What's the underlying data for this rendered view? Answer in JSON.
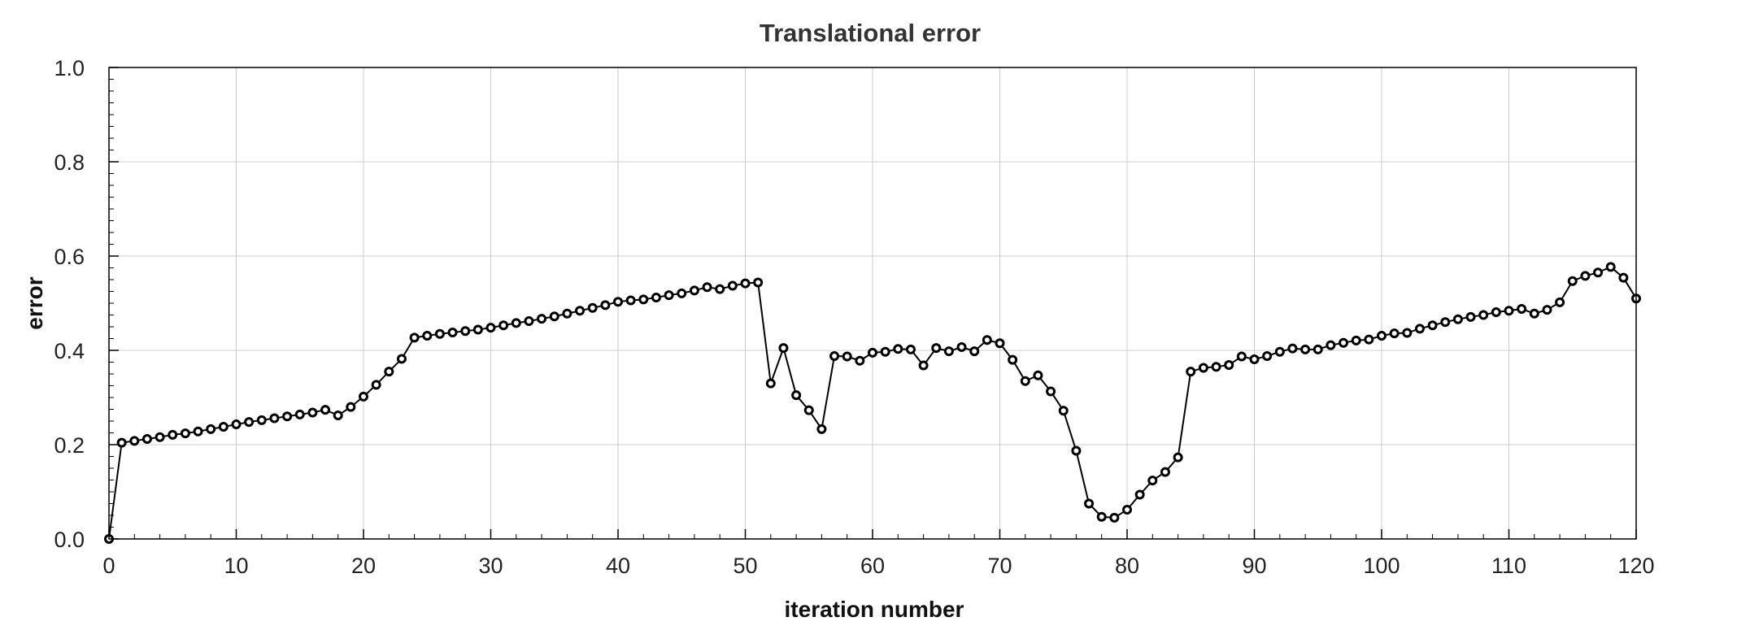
{
  "chart_data": {
    "type": "line",
    "title": "Translational error",
    "xlabel": "iteration number",
    "ylabel": "error",
    "xlim": [
      0,
      120
    ],
    "ylim": [
      0,
      1.0
    ],
    "x_ticks": [
      0,
      10,
      20,
      30,
      40,
      50,
      60,
      70,
      80,
      90,
      100,
      110,
      120
    ],
    "y_ticks": [
      0.0,
      0.2,
      0.4,
      0.6,
      0.8,
      1.0
    ],
    "x_tick_labels": [
      "0",
      "10",
      "20",
      "30",
      "40",
      "50",
      "60",
      "70",
      "80",
      "90",
      "100",
      "110",
      "120"
    ],
    "y_tick_labels": [
      "0.0",
      "0.2",
      "0.4",
      "0.6",
      "0.8",
      "1.0"
    ],
    "grid": true,
    "legend": "none",
    "colors": {
      "line": "#000000",
      "marker_fill": "#ffffff",
      "grid": "#cccccc",
      "axis": "#000000",
      "text": "#222222",
      "title": "#333333"
    },
    "series": [
      {
        "marker": "circle",
        "x": [
          0,
          1,
          2,
          3,
          4,
          5,
          6,
          7,
          8,
          9,
          10,
          11,
          12,
          13,
          14,
          15,
          16,
          17,
          18,
          19,
          20,
          21,
          22,
          23,
          24,
          25,
          26,
          27,
          28,
          29,
          30,
          31,
          32,
          33,
          34,
          35,
          36,
          37,
          38,
          39,
          40,
          41,
          42,
          43,
          44,
          45,
          46,
          47,
          48,
          49,
          50,
          51,
          52,
          53,
          54,
          55,
          56,
          57,
          58,
          59,
          60,
          61,
          62,
          63,
          64,
          65,
          66,
          67,
          68,
          69,
          70,
          71,
          72,
          73,
          74,
          75,
          76,
          77,
          78,
          79,
          80,
          81,
          82,
          83,
          84,
          85,
          86,
          87,
          88,
          89,
          90,
          91,
          92,
          93,
          94,
          95,
          96,
          97,
          98,
          99,
          100,
          101,
          102,
          103,
          104,
          105,
          106,
          107,
          108,
          109,
          110,
          111,
          112,
          113,
          114,
          115,
          116,
          117,
          118,
          119,
          120
        ],
        "values": [
          0.0,
          0.204,
          0.208,
          0.212,
          0.216,
          0.221,
          0.224,
          0.228,
          0.233,
          0.238,
          0.243,
          0.248,
          0.252,
          0.256,
          0.26,
          0.264,
          0.268,
          0.274,
          0.262,
          0.28,
          0.302,
          0.327,
          0.355,
          0.382,
          0.427,
          0.431,
          0.435,
          0.438,
          0.441,
          0.444,
          0.448,
          0.453,
          0.458,
          0.462,
          0.467,
          0.472,
          0.478,
          0.484,
          0.49,
          0.496,
          0.503,
          0.506,
          0.508,
          0.512,
          0.517,
          0.521,
          0.527,
          0.534,
          0.53,
          0.537,
          0.542,
          0.544,
          0.33,
          0.405,
          0.305,
          0.273,
          0.233,
          0.388,
          0.387,
          0.378,
          0.395,
          0.397,
          0.403,
          0.402,
          0.368,
          0.405,
          0.398,
          0.407,
          0.398,
          0.422,
          0.415,
          0.38,
          0.335,
          0.347,
          0.313,
          0.272,
          0.187,
          0.075,
          0.047,
          0.045,
          0.062,
          0.094,
          0.124,
          0.142,
          0.173,
          0.355,
          0.363,
          0.365,
          0.369,
          0.387,
          0.381,
          0.388,
          0.397,
          0.404,
          0.402,
          0.402,
          0.411,
          0.416,
          0.421,
          0.423,
          0.431,
          0.436,
          0.437,
          0.446,
          0.453,
          0.46,
          0.466,
          0.471,
          0.475,
          0.481,
          0.484,
          0.488,
          0.478,
          0.486,
          0.502,
          0.547,
          0.558,
          0.565,
          0.577,
          0.554,
          0.51
        ]
      }
    ]
  }
}
